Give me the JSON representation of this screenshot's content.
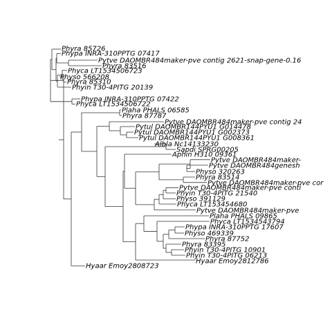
{
  "figure": {
    "type": "phylogenetic-tree",
    "background": "#ffffff",
    "line_color": "#333333",
    "text_color": "#000000"
  },
  "leaves": [
    "Phyra 85726",
    "Phypa INRA-310PPTG 07417",
    "Pytve DAOMBR484maker-pve contig 2621-snap-gene-0.16",
    "Phyra 83516",
    "Phyca LT1534506723",
    "Physo 566208",
    "Phyra 85310",
    "Phyin T30-4PITG 20139",
    "Phypa INRA-310PPTG 07422",
    "Phyca LT1534506722",
    "Plaha PHALS 06585",
    "Phyra 87787",
    "Pytve DAOMBR484maker-pve contig 24",
    "Pytul DAOMBR144PYU1 G014478",
    "Pytul DAOMBR144PYU1 G002373",
    "Pytul DAOMBR144PYU1 G008361",
    "Albla Nc14133230",
    "Sapdi SPRG00205",
    "Aphin H310 09361",
    "Pytve DAOMBR484maker-",
    "Pytve DAOMBR484genesh",
    "Physo 320263",
    "Phyra 83514",
    "Pytve DAOMBR484maker-pve cor",
    "Pytve DAOMBR484maker-pve conti",
    "Phyin T30-4PITG 21540",
    "Physo 391129",
    "Phyca LT153454680",
    "Pytve DAOMBR484maker-pve",
    "Plaha PHALS 09865",
    "Phyca LT1534543794",
    "Phypa INRA-310PPTG 17607",
    "Physo 469339",
    "Phyra 87752",
    "Phyra 83395",
    "Phyin T30-4PITG 10901",
    "Phyin T30-4PITG 06213",
    "Hyaar Emoy2812786",
    "Hyaar Emoy2808723"
  ]
}
